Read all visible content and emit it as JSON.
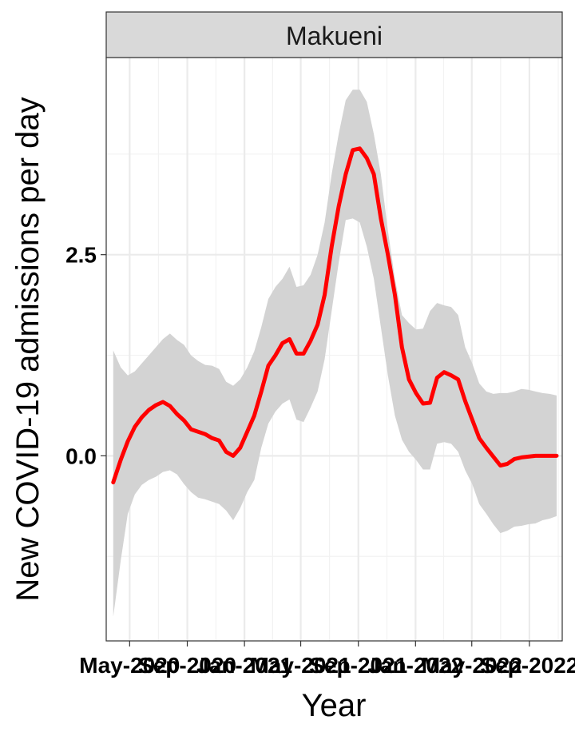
{
  "chart_data": {
    "type": "line",
    "panel_title": "Makueni",
    "xlabel": "Year",
    "ylabel": "New COVID-19 admissions per day",
    "y_ticks": [
      0.0,
      2.5
    ],
    "y_tick_labels": [
      "0.0",
      "2.5"
    ],
    "ylim": [
      -2.3,
      4.95
    ],
    "x_ticks": [
      "May-2020",
      "Sep-2020",
      "Jan-2021",
      "May-2021",
      "Sep-2021",
      "Jan-2022",
      "May-2022",
      "Sep-2022"
    ],
    "x_tick_labels": [
      "May-2020",
      "Sep-2020",
      "Jan-2021",
      "May-2021",
      "Sep-2021",
      "Jan-2022",
      "May-2022",
      "Sep-2022"
    ],
    "xlim": [
      "2020-03-12",
      "2022-11-10"
    ],
    "grid": true,
    "colors": {
      "line": "#ff0000",
      "ribbon": "#d3d3d3",
      "strip_fill": "#d9d9d9"
    },
    "series": [
      {
        "x": [
          "2020-03-27",
          "2020-04-12",
          "2020-04-27",
          "2020-05-12",
          "2020-05-27",
          "2020-06-11",
          "2020-06-26",
          "2020-07-11",
          "2020-07-26",
          "2020-08-10",
          "2020-08-25",
          "2020-09-09",
          "2020-09-24",
          "2020-10-09",
          "2020-10-24",
          "2020-11-08",
          "2020-11-23",
          "2020-12-08",
          "2020-12-23",
          "2021-01-07",
          "2021-01-22",
          "2021-02-06",
          "2021-02-21",
          "2021-03-08",
          "2021-03-23",
          "2021-04-07",
          "2021-04-22",
          "2021-05-07",
          "2021-05-22",
          "2021-06-06",
          "2021-06-21",
          "2021-07-06",
          "2021-07-21",
          "2021-08-05",
          "2021-08-20",
          "2021-09-04",
          "2021-09-19",
          "2021-10-04",
          "2021-10-19",
          "2021-11-03",
          "2021-11-18",
          "2021-12-03",
          "2021-12-18",
          "2022-01-02",
          "2022-01-17",
          "2022-02-01",
          "2022-02-16",
          "2022-03-03",
          "2022-03-18",
          "2022-04-02",
          "2022-04-17",
          "2022-05-02",
          "2022-05-17",
          "2022-06-01",
          "2022-06-16",
          "2022-07-01",
          "2022-07-16",
          "2022-07-31",
          "2022-08-15",
          "2022-08-30",
          "2022-09-14",
          "2022-09-29",
          "2022-10-14",
          "2022-10-29"
        ],
        "y": [
          -0.33,
          -0.05,
          0.18,
          0.36,
          0.48,
          0.57,
          0.63,
          0.67,
          0.62,
          0.52,
          0.44,
          0.33,
          0.3,
          0.27,
          0.22,
          0.19,
          0.05,
          0.0,
          0.1,
          0.3,
          0.5,
          0.8,
          1.12,
          1.25,
          1.4,
          1.45,
          1.27,
          1.27,
          1.43,
          1.63,
          2.0,
          2.6,
          3.1,
          3.5,
          3.8,
          3.82,
          3.7,
          3.5,
          2.95,
          2.5,
          2.0,
          1.35,
          0.95,
          0.78,
          0.65,
          0.66,
          0.97,
          1.04,
          1.0,
          0.95,
          0.68,
          0.45,
          0.22,
          0.1,
          -0.01,
          -0.12,
          -0.1,
          -0.04,
          -0.02,
          -0.01,
          0.0,
          0.0,
          0.0,
          0.0
        ],
        "lower": [
          -2.0,
          -1.3,
          -0.72,
          -0.48,
          -0.36,
          -0.3,
          -0.26,
          -0.2,
          -0.18,
          -0.23,
          -0.35,
          -0.45,
          -0.52,
          -0.54,
          -0.57,
          -0.6,
          -0.68,
          -0.8,
          -0.65,
          -0.45,
          -0.3,
          0.1,
          0.4,
          0.55,
          0.65,
          0.7,
          0.45,
          0.42,
          0.6,
          0.8,
          1.2,
          1.8,
          2.4,
          2.93,
          2.95,
          2.9,
          2.6,
          2.2,
          1.6,
          1.0,
          0.5,
          0.2,
          0.05,
          -0.05,
          -0.17,
          -0.17,
          0.15,
          0.17,
          0.15,
          0.05,
          -0.18,
          -0.35,
          -0.6,
          -0.72,
          -0.85,
          -0.96,
          -0.93,
          -0.88,
          -0.87,
          -0.85,
          -0.84,
          -0.8,
          -0.78,
          -0.75
        ]
      },
      {
        "x": [
          "2020-03-27",
          "2020-04-12",
          "2020-04-27",
          "2020-05-12",
          "2020-05-27",
          "2020-06-11",
          "2020-06-26",
          "2020-07-11",
          "2020-07-26",
          "2020-08-10",
          "2020-08-25",
          "2020-09-09",
          "2020-09-24",
          "2020-10-09",
          "2020-10-24",
          "2020-11-08",
          "2020-11-23",
          "2020-12-08",
          "2020-12-23",
          "2021-01-07",
          "2021-01-22",
          "2021-02-06",
          "2021-02-21",
          "2021-03-08",
          "2021-03-23",
          "2021-04-07",
          "2021-04-22",
          "2021-05-07",
          "2021-05-22",
          "2021-06-06",
          "2021-06-21",
          "2021-07-06",
          "2021-07-21",
          "2021-08-05",
          "2021-08-20",
          "2021-09-04",
          "2021-09-19",
          "2021-10-04",
          "2021-10-19",
          "2021-11-03",
          "2021-11-18",
          "2021-12-03",
          "2021-12-18",
          "2022-01-02",
          "2022-01-17",
          "2022-02-01",
          "2022-02-16",
          "2022-03-03",
          "2022-03-18",
          "2022-04-02",
          "2022-04-17",
          "2022-05-02",
          "2022-05-17",
          "2022-06-01",
          "2022-06-16",
          "2022-07-01",
          "2022-07-16",
          "2022-07-31",
          "2022-08-15",
          "2022-08-30",
          "2022-09-14",
          "2022-09-29",
          "2022-10-14",
          "2022-10-29"
        ],
        "upper": [
          1.31,
          1.1,
          1.0,
          1.05,
          1.15,
          1.25,
          1.35,
          1.45,
          1.52,
          1.44,
          1.38,
          1.25,
          1.18,
          1.13,
          1.12,
          1.08,
          0.92,
          0.87,
          0.95,
          1.1,
          1.3,
          1.6,
          1.95,
          2.1,
          2.2,
          2.35,
          2.1,
          2.12,
          2.25,
          2.5,
          2.9,
          3.5,
          4.0,
          4.42,
          4.55,
          4.55,
          4.4,
          4.0,
          3.5,
          2.8,
          2.2,
          1.75,
          1.65,
          1.57,
          1.58,
          1.8,
          1.9,
          1.87,
          1.85,
          1.75,
          1.35,
          1.15,
          0.9,
          0.8,
          0.77,
          0.78,
          0.78,
          0.8,
          0.83,
          0.82,
          0.8,
          0.78,
          0.77,
          0.75
        ]
      }
    ]
  }
}
